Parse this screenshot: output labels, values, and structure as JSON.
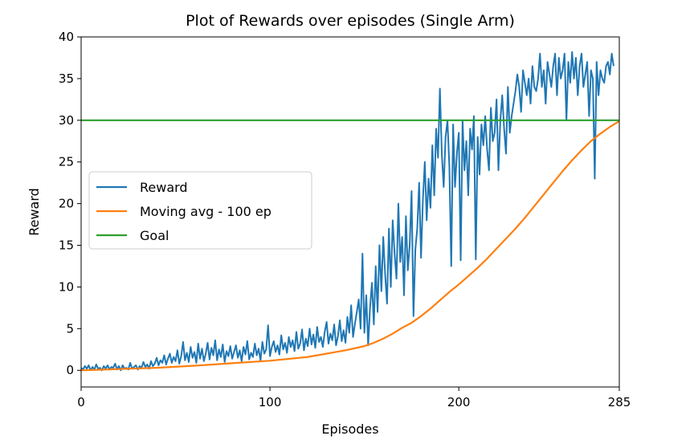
{
  "chart_data": {
    "type": "line",
    "title": "Plot of Rewards over episodes (Single Arm)",
    "xlabel": "Episodes",
    "ylabel": "Reward",
    "xlim": [
      0,
      285
    ],
    "ylim": [
      -2,
      40
    ],
    "xticks": [
      0,
      100,
      200,
      285
    ],
    "yticks": [
      0,
      5,
      10,
      15,
      20,
      25,
      30,
      35,
      40
    ],
    "grid": false,
    "legend_position": "center-left",
    "series": [
      {
        "name": "Reward",
        "color": "#1f77b4",
        "values": [
          0.3,
          0.1,
          0.5,
          0.2,
          0.6,
          0.0,
          0.4,
          0.1,
          0.7,
          0.2,
          0.3,
          0.0,
          0.5,
          0.2,
          0.6,
          0.1,
          0.4,
          0.3,
          0.8,
          0.1,
          0.5,
          0.0,
          0.6,
          0.2,
          0.3,
          0.1,
          0.9,
          0.2,
          0.4,
          0.6,
          0.1,
          0.5,
          0.3,
          1.0,
          0.4,
          0.7,
          0.2,
          1.1,
          0.5,
          0.8,
          1.5,
          0.6,
          1.2,
          0.9,
          1.8,
          0.7,
          1.4,
          2.0,
          0.9,
          1.6,
          1.1,
          2.4,
          0.8,
          1.7,
          3.4,
          1.2,
          2.1,
          1.0,
          2.8,
          1.5,
          2.2,
          0.9,
          3.2,
          1.4,
          2.6,
          1.1,
          2.0,
          3.3,
          1.3,
          2.7,
          1.8,
          3.6,
          1.2,
          2.5,
          1.6,
          3.1,
          1.0,
          2.3,
          1.7,
          2.9,
          1.4,
          2.2,
          3.0,
          1.5,
          2.4,
          1.1,
          2.8,
          1.9,
          3.5,
          1.3,
          2.1,
          1.6,
          3.2,
          1.8,
          2.6,
          1.2,
          3.4,
          2.0,
          2.5,
          5.4,
          1.7,
          2.8,
          3.5,
          2.2,
          3.0,
          1.9,
          4.2,
          2.5,
          3.3,
          2.1,
          4.0,
          2.8,
          3.6,
          2.3,
          4.6,
          2.6,
          3.2,
          4.9,
          2.4,
          3.8,
          2.9,
          5.0,
          3.1,
          4.3,
          2.7,
          5.2,
          3.4,
          4.0,
          2.8,
          4.6,
          5.8,
          3.2,
          4.4,
          3.6,
          5.5,
          3.0,
          4.1,
          6.0,
          3.5,
          4.8,
          3.3,
          6.4,
          4.5,
          7.8,
          4.0,
          5.6,
          7.0,
          8.5,
          5.0,
          14.0,
          4.5,
          9.0,
          3.0,
          7.5,
          10.5,
          5.5,
          12.5,
          7.0,
          15.0,
          9.5,
          16.0,
          11.5,
          8.0,
          17.0,
          10.0,
          18.0,
          14.0,
          11.0,
          20.0,
          13.0,
          16.0,
          9.0,
          18.5,
          12.0,
          15.0,
          21.5,
          6.5,
          14.5,
          17.0,
          22.5,
          13.5,
          20.5,
          25.0,
          18.0,
          23.0,
          19.5,
          27.0,
          21.0,
          29.0,
          25.5,
          33.8,
          26.0,
          22.0,
          28.0,
          30.0,
          24.5,
          12.5,
          29.5,
          22.0,
          26.0,
          28.5,
          13.2,
          30.0,
          24.0,
          27.5,
          21.0,
          29.0,
          26.5,
          30.5,
          13.3,
          28.0,
          23.5,
          29.5,
          27.0,
          30.5,
          26.5,
          24.0,
          31.5,
          27.5,
          28.5,
          32.5,
          24.0,
          30.0,
          33.0,
          29.0,
          26.0,
          34.0,
          28.5,
          30.5,
          32.0,
          33.5,
          35.5,
          34.0,
          31.0,
          36.0,
          34.5,
          33.0,
          35.0,
          32.0,
          36.5,
          34.0,
          33.5,
          35.0,
          38.0,
          34.0,
          36.0,
          32.0,
          37.0,
          35.5,
          34.0,
          36.5,
          38.0,
          33.0,
          37.5,
          35.0,
          36.0,
          38.0,
          30.0,
          37.0,
          34.5,
          38.2,
          35.0,
          37.5,
          33.0,
          36.5,
          38.0,
          34.0,
          35.5,
          37.0,
          30.5,
          36.0,
          35.0,
          23.0,
          37.0,
          33.0,
          36.0,
          35.0,
          34.5,
          36.5,
          37.0,
          35.5,
          38.0,
          36.5
        ]
      },
      {
        "name": "Moving avg - 100 ep",
        "color": "#ff7f0e",
        "x": [
          0,
          20,
          40,
          60,
          80,
          100,
          120,
          140,
          150,
          155,
          160,
          165,
          170,
          175,
          180,
          185,
          190,
          195,
          200,
          205,
          210,
          215,
          220,
          225,
          230,
          235,
          240,
          245,
          250,
          255,
          260,
          265,
          270,
          275,
          280,
          285
        ],
        "y": [
          0.0,
          0.15,
          0.3,
          0.55,
          0.85,
          1.15,
          1.6,
          2.4,
          2.9,
          3.3,
          3.8,
          4.4,
          5.1,
          5.7,
          6.5,
          7.4,
          8.4,
          9.4,
          10.3,
          11.3,
          12.3,
          13.4,
          14.6,
          15.8,
          17.0,
          18.3,
          19.7,
          21.1,
          22.5,
          23.9,
          25.2,
          26.4,
          27.5,
          28.4,
          29.2,
          29.9
        ]
      },
      {
        "name": "Goal",
        "color": "#2ca02c",
        "x": [
          0,
          285
        ],
        "y": [
          30,
          30
        ]
      }
    ]
  }
}
